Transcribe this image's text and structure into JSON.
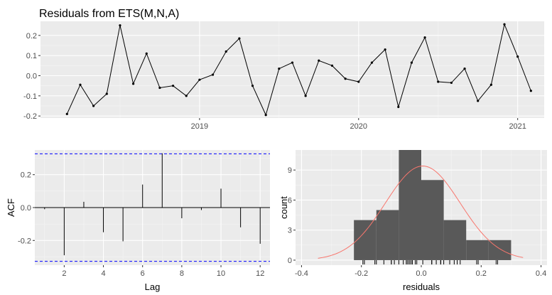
{
  "chart_data": [
    {
      "type": "line",
      "title": "Residuals from ETS(M,N,A)",
      "xlabel": "",
      "ylabel": "",
      "x_start": "2018-03",
      "frequency": "monthly",
      "x_ticks": [
        "2019",
        "2020",
        "2021"
      ],
      "y_ticks": [
        "-0.2",
        "-0.1",
        "0.0",
        "0.1",
        "0.2"
      ],
      "ylim": [
        -0.21,
        0.27
      ],
      "xlim": [
        "2018-01",
        "2021-03"
      ],
      "grid": true,
      "values": [
        -0.19,
        -0.045,
        -0.15,
        -0.09,
        0.25,
        -0.04,
        0.11,
        -0.06,
        -0.05,
        -0.1,
        -0.02,
        0.005,
        0.12,
        0.185,
        -0.05,
        -0.195,
        0.035,
        0.065,
        -0.1,
        0.075,
        0.05,
        -0.015,
        -0.03,
        0.065,
        0.13,
        -0.155,
        0.065,
        0.19,
        -0.03,
        -0.035,
        0.035,
        -0.125,
        -0.045,
        0.255,
        0.095,
        -0.075
      ]
    },
    {
      "type": "bar",
      "title": "",
      "xlabel": "Lag",
      "ylabel": "ACF",
      "x_ticks": [
        "2",
        "4",
        "6",
        "8",
        "10",
        "12"
      ],
      "y_ticks": [
        "-0.2",
        "0.0",
        "0.2"
      ],
      "xlim": [
        0.5,
        12.5
      ],
      "ylim": [
        -0.35,
        0.35
      ],
      "confidence_bound": 0.327,
      "lags": [
        1,
        2,
        3,
        4,
        5,
        6,
        7,
        8,
        9,
        10,
        11,
        12
      ],
      "values": [
        -0.01,
        -0.29,
        0.035,
        -0.15,
        -0.205,
        0.14,
        0.33,
        -0.065,
        -0.015,
        0.115,
        -0.12,
        -0.22
      ],
      "grid": true
    },
    {
      "type": "bar",
      "title": "",
      "xlabel": "residuals",
      "ylabel": "count",
      "x_ticks": [
        "-0.4",
        "-0.2",
        "0.0",
        "0.2",
        "0.4"
      ],
      "y_ticks": [
        "0",
        "3",
        "6",
        "9"
      ],
      "xlim": [
        -0.4,
        0.4
      ],
      "ylim": [
        0,
        11
      ],
      "bins": [
        {
          "start": -0.225,
          "end": -0.15,
          "count": 4
        },
        {
          "start": -0.15,
          "end": -0.075,
          "count": 5
        },
        {
          "start": -0.075,
          "end": 0.0,
          "count": 11
        },
        {
          "start": 0.0,
          "end": 0.075,
          "count": 8
        },
        {
          "start": 0.075,
          "end": 0.15,
          "count": 4
        },
        {
          "start": 0.15,
          "end": 0.225,
          "count": 2
        },
        {
          "start": 0.225,
          "end": 0.3,
          "count": 2
        }
      ],
      "normal_curve": {
        "mean": 0.005,
        "sd": 0.125,
        "peak_count": 9.4,
        "color": "#F8766D"
      },
      "bar_color": "#595959",
      "grid": true
    }
  ]
}
